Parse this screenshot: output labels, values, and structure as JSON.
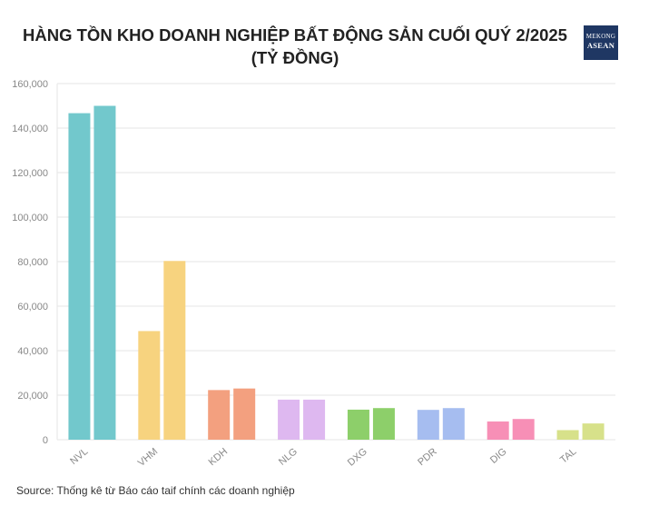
{
  "colors": {
    "background": "#ffffff",
    "grid": "#e6e6e6",
    "text": "#222222",
    "logo_bg": "#1f3763"
  },
  "logo": {
    "line1": "MEKONG",
    "line2": "ASEAN"
  },
  "source": "Source: Thống kê từ Báo cáo taif chính các doanh nghiệp",
  "chart_data": {
    "type": "bar",
    "title": "HÀNG TỒN KHO DOANH NGHIỆP BẤT ĐỘNG SẢN CUỐI QUÝ 2/2025 (TỶ ĐỒNG)",
    "categories": [
      "NVL",
      "VHM",
      "KDH",
      "NLG",
      "DXG",
      "PDR",
      "DIG",
      "TAL"
    ],
    "series": [
      {
        "values": [
          146700,
          48800,
          22300,
          18000,
          13500,
          13400,
          8200,
          4300
        ]
      },
      {
        "values": [
          150000,
          80300,
          23000,
          18000,
          14200,
          14200,
          9300,
          7300
        ]
      }
    ],
    "category_colors": [
      "#72c8cc",
      "#f7d37f",
      "#f3a07f",
      "#deb8f0",
      "#8dcf6a",
      "#a6bdf0",
      "#f78fb6",
      "#d7e18a"
    ],
    "ylim": [
      0,
      160000
    ],
    "yticks": [
      0,
      20000,
      40000,
      60000,
      80000,
      100000,
      120000,
      140000,
      160000
    ],
    "ytick_labels": [
      "0",
      "20,000",
      "40,000",
      "60,000",
      "80,000",
      "100,000",
      "120,000",
      "140,000",
      "160,000"
    ],
    "grid": true,
    "xlabel": "",
    "ylabel": ""
  }
}
